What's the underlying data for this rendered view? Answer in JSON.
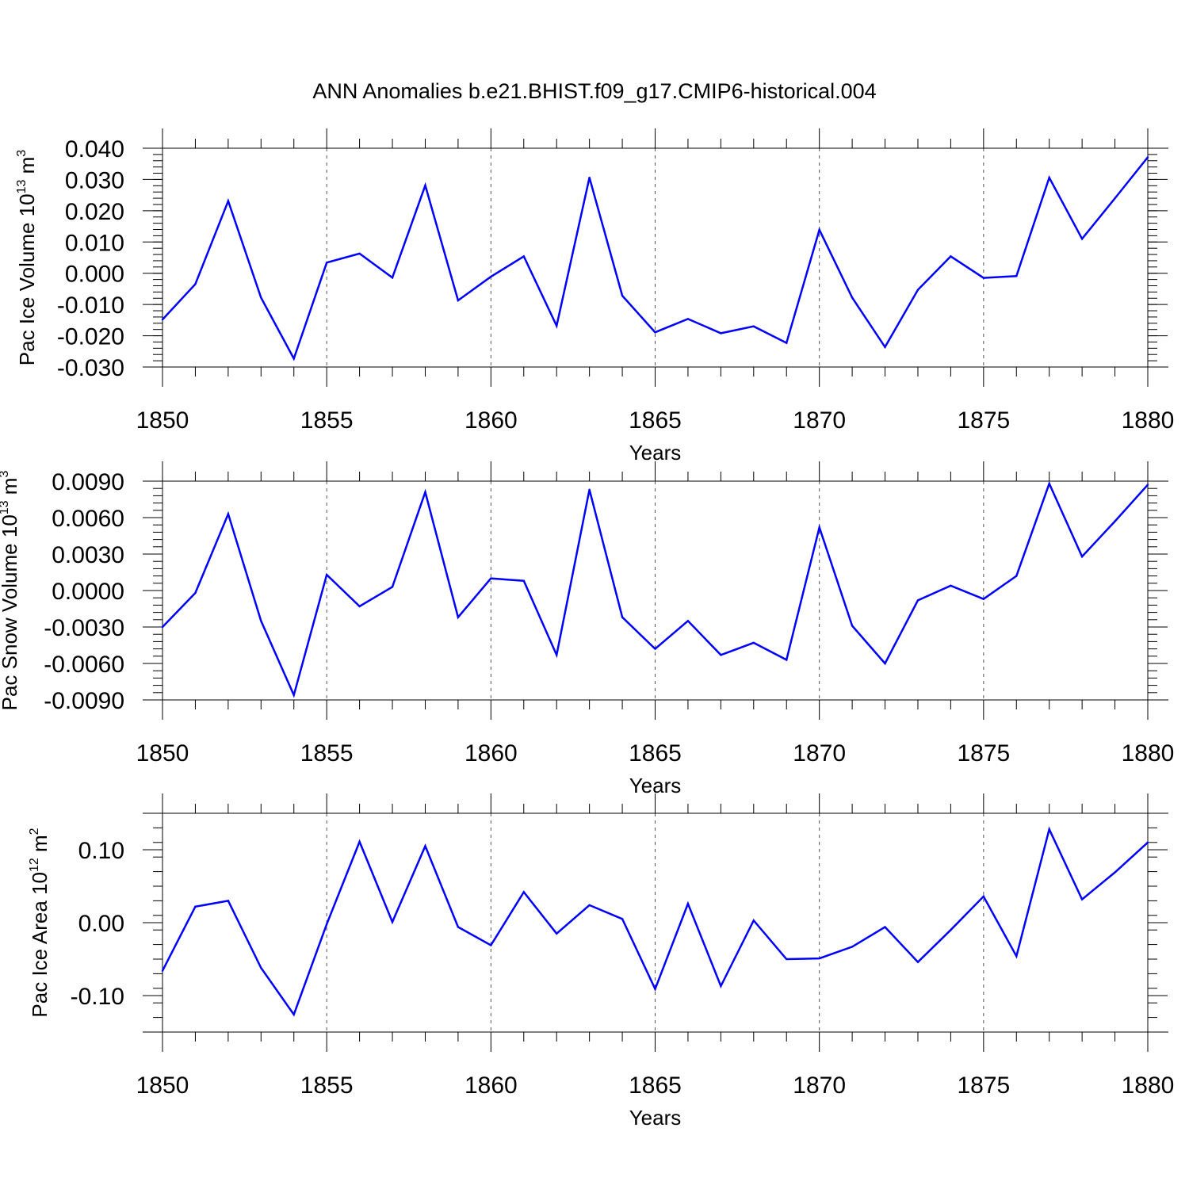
{
  "chart_data": {
    "title": "ANN Anomalies b.e21.BHIST.f09_g17.CMIP6-historical.004",
    "colors": {
      "line": "#0000ff",
      "axis": "#000000",
      "grid": "#555555"
    },
    "x": [
      1850,
      1851,
      1852,
      1853,
      1854,
      1855,
      1856,
      1857,
      1858,
      1859,
      1860,
      1861,
      1862,
      1863,
      1864,
      1865,
      1866,
      1867,
      1868,
      1869,
      1870,
      1871,
      1872,
      1873,
      1874,
      1875,
      1876,
      1877,
      1878,
      1879,
      1880
    ],
    "xlim": [
      1850,
      1880
    ],
    "xticks": [
      1850,
      1855,
      1860,
      1865,
      1870,
      1875,
      1880
    ],
    "xtick_labels": [
      "1850",
      "1855",
      "1860",
      "1865",
      "1870",
      "1875",
      "1880"
    ],
    "xlabel": "Years",
    "panels": [
      {
        "type": "line",
        "ylabel": {
          "main": "Pac Ice Volume 10",
          "exp": "13",
          "unit": " m",
          "unit_exp": "3"
        },
        "ylim": [
          -0.03,
          0.04
        ],
        "yticks": [
          0.04,
          0.03,
          0.02,
          0.01,
          0.0,
          -0.01,
          -0.02,
          -0.03
        ],
        "ytick_labels": [
          "0.040",
          "0.030",
          "0.020",
          "0.010",
          "0.000",
          "-0.010",
          "-0.020",
          "-0.030"
        ],
        "minor_step": 0.002,
        "values": [
          -0.0148,
          -0.0035,
          0.0231,
          -0.0078,
          -0.0273,
          0.0034,
          0.0063,
          -0.0014,
          0.0281,
          -0.0087,
          -0.0011,
          0.0054,
          -0.0168,
          0.0306,
          -0.0072,
          -0.0189,
          -0.0146,
          -0.0192,
          -0.017,
          -0.0223,
          0.0139,
          -0.0078,
          -0.0236,
          -0.0053,
          0.0054,
          -0.0015,
          -0.0009,
          0.0306,
          0.011,
          0.024,
          0.0371
        ]
      },
      {
        "type": "line",
        "ylabel": {
          "main": "Pac Snow Volume 10",
          "exp": "13",
          "unit": " m",
          "unit_exp": "3"
        },
        "ylim": [
          -0.009,
          0.009
        ],
        "yticks": [
          0.009,
          0.006,
          0.003,
          0.0,
          -0.003,
          -0.006,
          -0.009
        ],
        "ytick_labels": [
          "0.0090",
          "0.0060",
          "0.0030",
          "0.0000",
          "-0.0030",
          "-0.0060",
          "-0.0090"
        ],
        "minor_step": 0.0006,
        "values": [
          -0.003,
          -0.0002,
          0.0063,
          -0.0025,
          -0.0086,
          0.0013,
          -0.0013,
          0.0003,
          0.0081,
          -0.0022,
          0.001,
          0.0008,
          -0.0053,
          0.0083,
          -0.0022,
          -0.0048,
          -0.0025,
          -0.0053,
          -0.0043,
          -0.0057,
          0.0052,
          -0.0029,
          -0.006,
          -0.0008,
          0.0004,
          -0.0007,
          0.0012,
          0.0088,
          0.0028,
          0.0057,
          0.0087
        ]
      },
      {
        "type": "line",
        "ylabel": {
          "main": "Pac Ice Area 10",
          "exp": "12",
          "unit": " m",
          "unit_exp": "2"
        },
        "ylim": [
          -0.15,
          0.15
        ],
        "yticks": [
          0.1,
          0.0,
          -0.1
        ],
        "ytick_labels": [
          "0.10",
          "0.00",
          "-0.10"
        ],
        "minor_step": 0.02,
        "values": [
          -0.066,
          0.022,
          0.03,
          -0.062,
          -0.126,
          -0.002,
          0.111,
          0.001,
          0.105,
          -0.006,
          -0.031,
          0.042,
          -0.015,
          0.024,
          0.005,
          -0.091,
          0.026,
          -0.087,
          0.003,
          -0.05,
          -0.049,
          -0.033,
          -0.006,
          -0.054,
          -0.01,
          0.036,
          -0.046,
          0.128,
          0.032,
          0.069,
          0.11
        ]
      }
    ]
  }
}
